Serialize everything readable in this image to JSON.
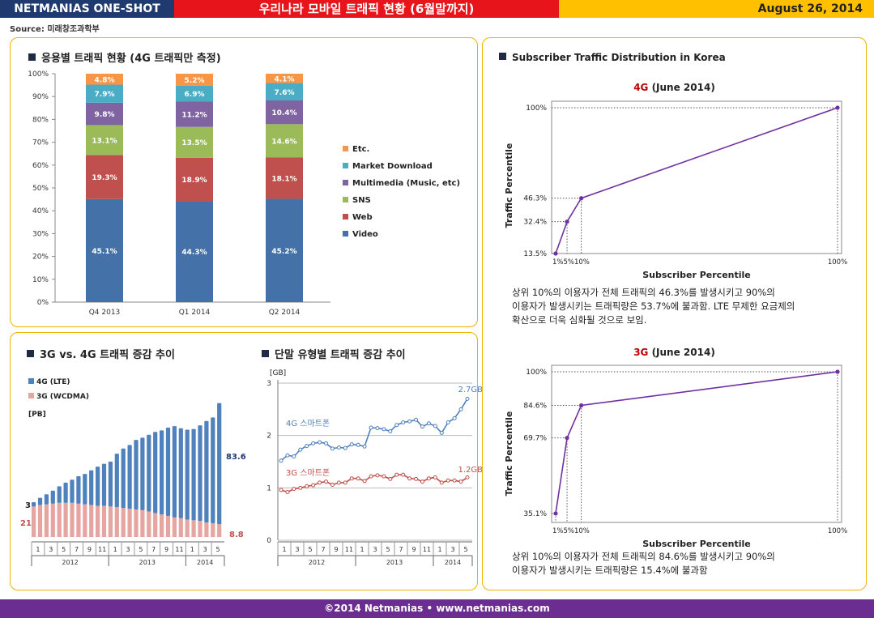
{
  "header": {
    "left": "NETMANIAS ONE-SHOT",
    "title": "우리나라 모바일 트래픽 현황 (6월말까지)",
    "date": "August 26, 2014"
  },
  "source": "Source: 미래창조과학부",
  "footer": "©2014 Netmanias • www.netmanias.com",
  "panels": {
    "app_title": "응용별 트래픽 현황 (4G 트래픽만 측정)",
    "gen_title": "3G vs. 4G 트래픽 증감 추이",
    "device_title": "단말 유형별 트래픽 증감 추이",
    "dist_title": "Subscriber Traffic Distribution in Korea",
    "chart4g_title_gen": "4G",
    "chart4g_title_rest": " (June 2014)",
    "chart3g_title_gen": "3G",
    "chart3g_title_rest": " (June 2014)",
    "note4g_line1": "상위 10%의 이용자가 전체 트래픽의 46.3%를 발생시키고 90%의",
    "note4g_line2": "이용자가 발생시키는 트래픽량은 53.7%에 불과함. LTE 무제한 요금제의",
    "note4g_line3": "확산으로 더욱 심화될 것으로 보임.",
    "note3g_line1": "상위 10%의 이용자가 전체 트래픽의 84.6%를 발생시키고 90%의",
    "note3g_line2": "이용자가 발생시키는 트래픽량은 15.4%에 불과함"
  },
  "colors": {
    "video": "#4472a8",
    "web": "#c0504d",
    "sns": "#9bbb59",
    "multimedia": "#8064a2",
    "market": "#4bacc6",
    "etc": "#f79646",
    "lte": "#4f81bd",
    "wcdma": "#e6a5a1",
    "smart4g": "#4f81bd",
    "smart3g": "#c0504d",
    "dist": "#7030a0"
  },
  "chart_data": [
    {
      "id": "app",
      "type": "bar",
      "stacked": true,
      "categories": [
        "Q4 2013",
        "Q1 2014",
        "Q2 2014"
      ],
      "series": [
        {
          "name": "Video",
          "key": "video",
          "values": [
            45.1,
            44.3,
            45.2
          ],
          "labels": [
            "45.1%",
            "44.3%",
            "45.2%"
          ]
        },
        {
          "name": "Web",
          "key": "web",
          "values": [
            19.3,
            18.9,
            18.1
          ],
          "labels": [
            "19.3%",
            "18.9%",
            "18.1%"
          ]
        },
        {
          "name": "SNS",
          "key": "sns",
          "values": [
            13.1,
            13.5,
            14.6
          ],
          "labels": [
            "13.1%",
            "13.5%",
            "14.6%"
          ]
        },
        {
          "name": "Multimedia (Music, etc)",
          "key": "multimedia",
          "values": [
            9.8,
            11.2,
            10.4
          ],
          "labels": [
            "9.8%",
            "11.2%",
            "10.4%"
          ]
        },
        {
          "name": "Market Download",
          "key": "market",
          "values": [
            7.9,
            6.9,
            7.6
          ],
          "labels": [
            "7.9%",
            "6.9%",
            "7.6%"
          ]
        },
        {
          "name": "Etc.",
          "key": "etc",
          "values": [
            4.8,
            5.2,
            4.1
          ],
          "labels": [
            "4.8%",
            "5.2%",
            "4.1%"
          ]
        }
      ],
      "yticks": [
        "0%",
        "10%",
        "20%",
        "30%",
        "40%",
        "50%",
        "60%",
        "70%",
        "80%",
        "90%",
        "100%"
      ],
      "ylim": [
        0,
        100
      ]
    },
    {
      "id": "gen",
      "type": "bar",
      "stacked": true,
      "unit": "[PB]",
      "x": [
        "2012-01",
        "2012-02",
        "2012-03",
        "2012-04",
        "2012-05",
        "2012-06",
        "2012-07",
        "2012-08",
        "2012-09",
        "2012-10",
        "2012-11",
        "2012-12",
        "2013-01",
        "2013-02",
        "2013-03",
        "2013-04",
        "2013-05",
        "2013-06",
        "2013-07",
        "2013-08",
        "2013-09",
        "2013-10",
        "2013-11",
        "2013-12",
        "2014-01",
        "2014-02",
        "2014-03",
        "2014-04",
        "2014-05",
        "2014-06"
      ],
      "series": [
        {
          "name": "3G (WCDMA)",
          "key": "wcdma",
          "values": [
            21,
            22,
            22.5,
            23,
            23.5,
            23.5,
            23.5,
            23,
            22.5,
            22,
            21.5,
            21.5,
            21,
            20.5,
            20,
            19.5,
            19,
            18.5,
            17.5,
            16.5,
            15.5,
            14.5,
            13.5,
            13,
            12,
            11.5,
            11,
            10,
            9.5,
            8.8
          ]
        },
        {
          "name": "4G (LTE)",
          "key": "lte",
          "values": [
            3,
            5,
            7,
            9,
            11.5,
            14,
            16,
            19,
            21,
            24,
            27,
            29,
            31,
            37,
            41,
            44,
            48,
            50,
            53,
            56,
            58,
            61,
            63,
            62,
            62,
            63,
            66,
            70,
            73,
            83.6
          ]
        }
      ],
      "labels": {
        "wcdma_start": "21",
        "lte_start": "3",
        "lte_end": "83.6",
        "wcdma_end": "8.8"
      },
      "ylim": [
        0,
        100
      ],
      "month_labels": [
        "1",
        "3",
        "5",
        "7",
        "9",
        "11",
        "1",
        "3",
        "5",
        "7",
        "9",
        "11",
        "1",
        "3",
        "5"
      ],
      "year_labels": [
        "2012",
        "2013",
        "2014"
      ]
    },
    {
      "id": "device",
      "type": "line",
      "ylabel": "[GB]",
      "yticks": [
        "0",
        "1",
        "2",
        "3"
      ],
      "ylim": [
        0,
        3
      ],
      "x": [
        "2012-01",
        "2012-02",
        "2012-03",
        "2012-04",
        "2012-05",
        "2012-06",
        "2012-07",
        "2012-08",
        "2012-09",
        "2012-10",
        "2012-11",
        "2012-12",
        "2013-01",
        "2013-02",
        "2013-03",
        "2013-04",
        "2013-05",
        "2013-06",
        "2013-07",
        "2013-08",
        "2013-09",
        "2013-10",
        "2013-11",
        "2013-12",
        "2014-01",
        "2014-02",
        "2014-03",
        "2014-04",
        "2014-05",
        "2014-06"
      ],
      "series": [
        {
          "name": "4G 스마트폰",
          "key": "smart4g",
          "end_label": "2.7GB",
          "values": [
            1.52,
            1.62,
            1.6,
            1.73,
            1.8,
            1.85,
            1.87,
            1.85,
            1.75,
            1.77,
            1.76,
            1.83,
            1.82,
            1.79,
            2.15,
            2.14,
            2.12,
            2.08,
            2.2,
            2.25,
            2.27,
            2.3,
            2.17,
            2.23,
            2.18,
            2.05,
            2.25,
            2.33,
            2.5,
            2.7
          ]
        },
        {
          "name": "3G 스마트폰",
          "key": "smart3g",
          "end_label": "1.2GB",
          "values": [
            0.96,
            0.92,
            0.98,
            1.0,
            1.03,
            1.05,
            1.1,
            1.12,
            1.06,
            1.1,
            1.1,
            1.18,
            1.18,
            1.13,
            1.22,
            1.24,
            1.22,
            1.17,
            1.25,
            1.25,
            1.18,
            1.17,
            1.12,
            1.18,
            1.2,
            1.1,
            1.14,
            1.14,
            1.12,
            1.2
          ]
        }
      ],
      "month_labels": [
        "1",
        "3",
        "5",
        "7",
        "9",
        "11",
        "1",
        "3",
        "5",
        "7",
        "9",
        "11",
        "1",
        "3",
        "5"
      ],
      "year_labels": [
        "2012",
        "2013",
        "2014"
      ]
    },
    {
      "id": "dist4g",
      "type": "line",
      "title": "4G (June 2014)",
      "xlabel": "Subscriber Percentile",
      "ylabel": "Traffic Percentile",
      "x": [
        1,
        5,
        10,
        100
      ],
      "values": [
        13.5,
        32.4,
        46.3,
        100
      ],
      "xtick_labels": [
        "1%",
        "5%",
        "10%",
        "100%"
      ],
      "ytick_labels": [
        "13.5%",
        "32.4%",
        "46.3%",
        "100%"
      ]
    },
    {
      "id": "dist3g",
      "type": "line",
      "title": "3G (June 2014)",
      "xlabel": "Subscriber Percentile",
      "ylabel": "Traffic Percentile",
      "x": [
        1,
        5,
        10,
        100
      ],
      "values": [
        35.1,
        69.7,
        84.6,
        100
      ],
      "xtick_labels": [
        "1%",
        "5%",
        "10%",
        "100%"
      ],
      "ytick_labels": [
        "35.1%",
        "69.7%",
        "84.6%",
        "100%"
      ]
    }
  ]
}
